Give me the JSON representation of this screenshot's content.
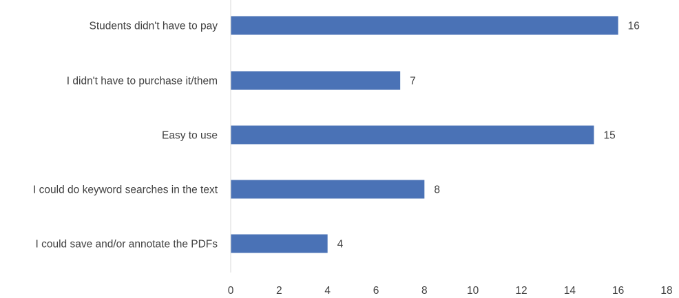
{
  "chart_data": {
    "type": "bar",
    "orientation": "horizontal",
    "categories": [
      "Students didn't have to pay",
      "I didn't have to purchase it/them",
      "Easy to use",
      "I could do keyword searches in the text",
      "I could save and/or annotate the PDFs"
    ],
    "values": [
      16,
      7,
      15,
      8,
      4
    ],
    "data_labels": [
      "16",
      "7",
      "15",
      "8",
      "4"
    ],
    "xlim": [
      0,
      18
    ],
    "xticks": [
      0,
      2,
      4,
      6,
      8,
      10,
      12,
      14,
      16,
      18
    ],
    "xtick_labels": [
      "0",
      "2",
      "4",
      "6",
      "8",
      "10",
      "12",
      "14",
      "16",
      "18"
    ],
    "grid": false,
    "legend": "none",
    "bar_color": "#4a72b6",
    "axis_color": "#d9d9d9",
    "text_color": "#404040"
  }
}
